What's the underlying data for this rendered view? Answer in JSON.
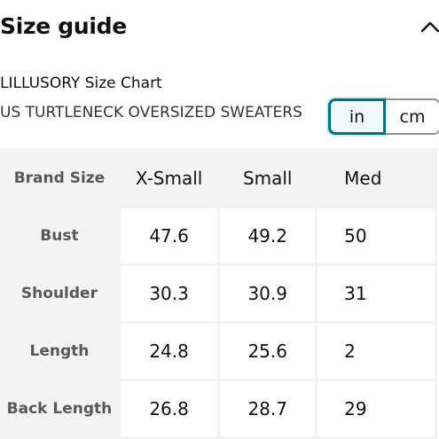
{
  "header": {
    "title": "Size guide"
  },
  "chart": {
    "title": "LILLUSORY Size Chart",
    "subtitle": "US TURTLENECK OVERSIZED SWEATERS"
  },
  "units": {
    "in_label": "in",
    "cm_label": "cm",
    "selected": "in"
  },
  "table": {
    "corner_label": "Brand Size",
    "columns": [
      "X-Small",
      "Small",
      "Med"
    ],
    "rows": [
      {
        "label": "Bust",
        "values": [
          "47.6",
          "49.2",
          "50"
        ]
      },
      {
        "label": "Shoulder",
        "values": [
          "30.3",
          "30.9",
          "31"
        ]
      },
      {
        "label": "Length",
        "values": [
          "24.8",
          "25.6",
          "2"
        ]
      },
      {
        "label": "Back Length",
        "values": [
          "26.8",
          "28.7",
          "29"
        ]
      }
    ]
  },
  "colors": {
    "accent": "#007185",
    "row_header_text": "#565959",
    "table_bg": "#f3f3f3"
  },
  "icons": {
    "collapse": "chevron-up-icon"
  }
}
